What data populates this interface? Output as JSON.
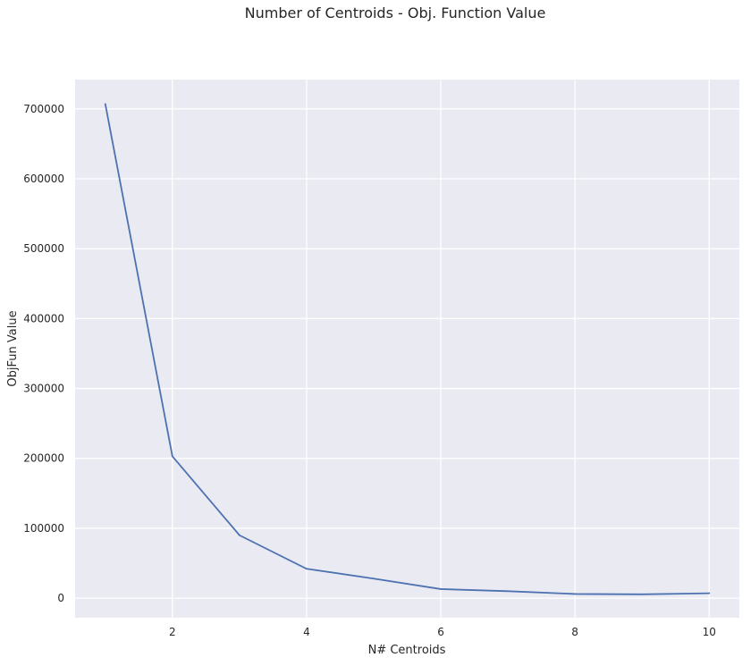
{
  "chart_data": {
    "type": "line",
    "title": "Number of Centroids - Obj. Function Value",
    "xlabel": "N# Centroids",
    "ylabel": "ObjFun Value",
    "x": [
      1,
      2,
      3,
      4,
      5,
      6,
      7,
      8,
      9,
      10
    ],
    "series": [
      {
        "values": [
          707000,
          203000,
          90000,
          42000,
          28000,
          13000,
          10000,
          6000,
          5500,
          7000
        ]
      }
    ],
    "xlim": [
      0.55,
      10.45
    ],
    "ylim": [
      -28000,
      742000
    ],
    "xticks": [
      2,
      4,
      6,
      8,
      10
    ],
    "xtick_labels": [
      "2",
      "4",
      "6",
      "8",
      "10"
    ],
    "yticks": [
      0,
      100000,
      200000,
      300000,
      400000,
      500000,
      600000,
      700000
    ],
    "ytick_labels": [
      "0",
      "100000",
      "200000",
      "300000",
      "400000",
      "500000",
      "600000",
      "700000"
    ],
    "grid": true,
    "colors": {
      "background": "#eaeaf2",
      "grid": "#ffffff",
      "line": "#4c72b0",
      "text": "#262626"
    }
  }
}
